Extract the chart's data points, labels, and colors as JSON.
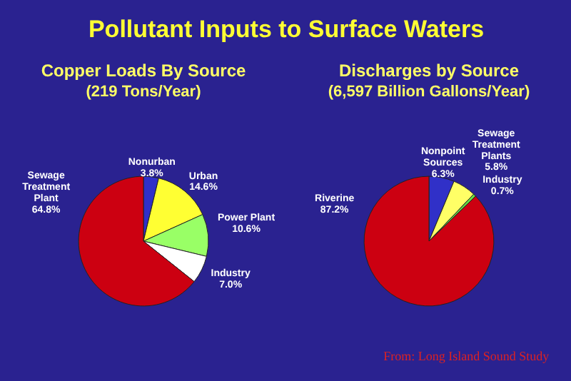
{
  "chart_data": [
    {
      "type": "other",
      "title": "Pollutant Inputs to Surface Waters"
    },
    {
      "type": "pie",
      "title": "Copper Loads By Source",
      "subtitle": "(219 Tons/Year)",
      "legend": false,
      "categories": [
        "Nonurban",
        "Urban",
        "Power Plant",
        "Industry",
        "Sewage Treatment Plant"
      ],
      "values": [
        3.8,
        14.6,
        10.6,
        7.0,
        64.8
      ],
      "colors": [
        "#3030c8",
        "#ffff33",
        "#99ff66",
        "#ffffff",
        "#cc0011"
      ],
      "value_labels": [
        "3.8%",
        "14.6%",
        "10.6%",
        "7.0%",
        "64.8%"
      ]
    },
    {
      "type": "pie",
      "title": "Discharges by Source",
      "subtitle": "(6,597 Billion Gallons/Year)",
      "legend": false,
      "categories": [
        "Nonpoint Sources",
        "Sewage Treatment Plants",
        "Industry",
        "Riverine"
      ],
      "values": [
        6.3,
        5.8,
        0.7,
        87.2
      ],
      "colors": [
        "#3030c8",
        "#ffff66",
        "#66dd44",
        "#cc0011"
      ],
      "value_labels": [
        "6.3%",
        "5.8%",
        "0.7%",
        "87.2%"
      ],
      "annotations": [
        "From:  Long Island Sound Study"
      ]
    }
  ]
}
